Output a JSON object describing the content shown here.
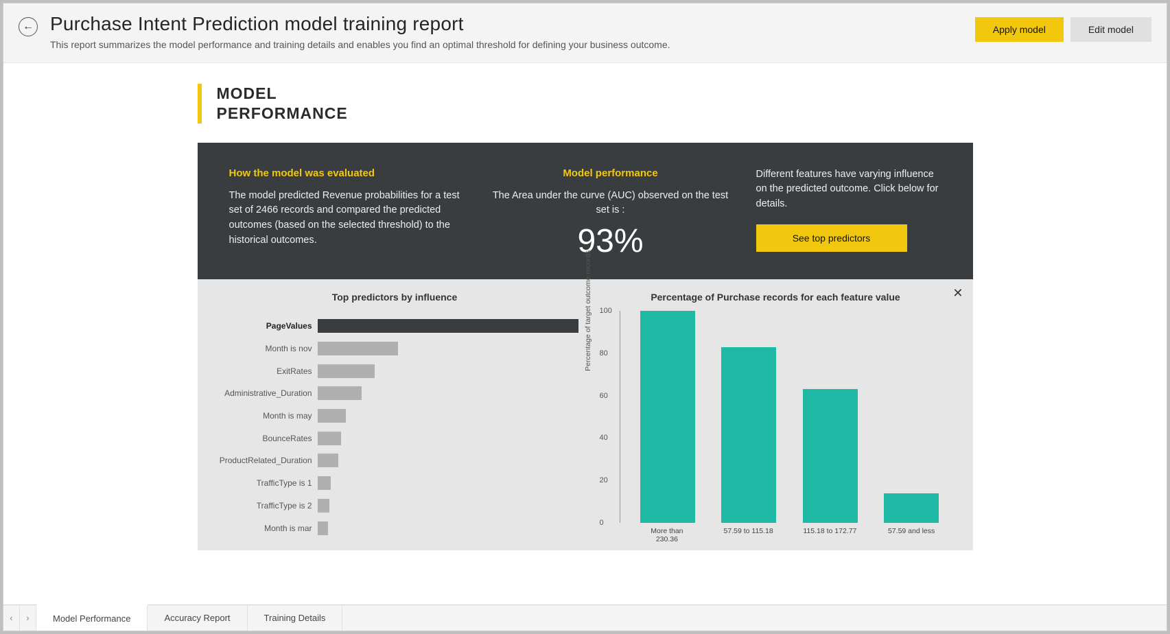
{
  "header": {
    "title": "Purchase Intent Prediction model training report",
    "subtitle": "This report summarizes the model performance and training details and enables you find an optimal threshold for defining your business outcome.",
    "apply_label": "Apply model",
    "edit_label": "Edit model"
  },
  "section": {
    "title_line1": "MODEL",
    "title_line2": "PERFORMANCE"
  },
  "band": {
    "eval_head": "How the model was evaluated",
    "eval_body": "The model predicted Revenue probabilities for a test set of 2466 records and compared the predicted outcomes (based on the selected threshold) to the historical outcomes.",
    "perf_head": "Model performance",
    "perf_body": "The Area under the curve (AUC) observed on the test set is :",
    "perf_value": "93%",
    "feat_body": "Different features have varying influence on the predicted outcome.  Click below for details.",
    "see_predictors": "See top predictors"
  },
  "predictors_chart": {
    "title": "Top predictors by influence",
    "type": "horizontal-bar",
    "max": 100,
    "bars": [
      {
        "label": "PageValues",
        "value": 100,
        "color": "#3a3d3f",
        "bold": true
      },
      {
        "label": "Month is nov",
        "value": 31,
        "color": "#b0b0b0",
        "bold": false
      },
      {
        "label": "ExitRates",
        "value": 22,
        "color": "#b0b0b0",
        "bold": false
      },
      {
        "label": "Administrative_Duration",
        "value": 17,
        "color": "#b0b0b0",
        "bold": false
      },
      {
        "label": "Month is may",
        "value": 11,
        "color": "#b0b0b0",
        "bold": false
      },
      {
        "label": "BounceRates",
        "value": 9,
        "color": "#b0b0b0",
        "bold": false
      },
      {
        "label": "ProductRelated_Duration",
        "value": 8,
        "color": "#b0b0b0",
        "bold": false
      },
      {
        "label": "TrafficType is 1",
        "value": 5,
        "color": "#b0b0b0",
        "bold": false
      },
      {
        "label": "TrafficType is 2",
        "value": 4.5,
        "color": "#b0b0b0",
        "bold": false
      },
      {
        "label": "Month is mar",
        "value": 4,
        "color": "#b0b0b0",
        "bold": false
      }
    ]
  },
  "feature_chart": {
    "title": "Percentage of Purchase records for each feature value",
    "type": "vertical-bar",
    "y_label": "Percentage of target outcome records",
    "ylim": [
      0,
      100
    ],
    "ytick_step": 20,
    "bar_color": "#1fb9a5",
    "bars": [
      {
        "category": "More than 230.36",
        "value": 100
      },
      {
        "category": "57.59 to 115.18",
        "value": 83
      },
      {
        "category": "115.18 to 172.77",
        "value": 63
      },
      {
        "category": "57.59 and less",
        "value": 14
      }
    ]
  },
  "tabs": {
    "items": [
      {
        "label": "Model Performance",
        "active": true
      },
      {
        "label": "Accuracy Report",
        "active": false
      },
      {
        "label": "Training Details",
        "active": false
      }
    ]
  },
  "colors": {
    "accent_yellow": "#f2c80f",
    "dark_band": "#3a3d3f",
    "teal": "#1fb9a5",
    "light_bg": "#e6e6e6"
  }
}
